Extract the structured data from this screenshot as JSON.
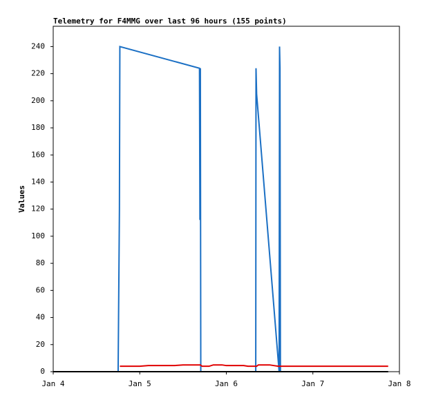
{
  "chart_data": {
    "type": "line",
    "title": "Telemetry for F4MMG over last 96 hours (155 points)",
    "y_label": "Values",
    "xlim": [
      0,
      4
    ],
    "xticks": [
      {
        "value": 0,
        "label": "Jan 4"
      },
      {
        "value": 1,
        "label": "Jan 5"
      },
      {
        "value": 2,
        "label": "Jan 6"
      },
      {
        "value": 3,
        "label": "Jan 7"
      },
      {
        "value": 4,
        "label": "Jan 8"
      }
    ],
    "ylim": [
      0,
      255
    ],
    "yticks": [
      0,
      20,
      40,
      60,
      80,
      100,
      120,
      140,
      160,
      180,
      200,
      220,
      240
    ],
    "grid": false,
    "series": [
      {
        "color": "#1a6fc4",
        "x": [
          0.75,
          0.755,
          0.76,
          0.765,
          0.77,
          1.69,
          1.695,
          1.7,
          1.705,
          2.34,
          2.343,
          2.35,
          2.61,
          2.615,
          2.62,
          2.625
        ],
        "values": [
          0,
          40,
          80,
          120,
          240,
          224,
          112,
          224,
          0,
          0,
          224,
          205,
          0,
          240,
          224,
          0
        ]
      },
      {
        "color": "#e00000",
        "x": [
          0.77,
          1.0,
          1.1,
          1.4,
          1.5,
          1.7,
          1.72,
          1.8,
          1.85,
          1.95,
          2.0,
          2.2,
          2.25,
          2.35,
          2.37,
          2.5,
          2.55,
          2.6,
          3.0,
          3.87
        ],
        "values": [
          4,
          4,
          4.5,
          4.5,
          5,
          5,
          4,
          4,
          5,
          5,
          4.5,
          4.5,
          4,
          4,
          5,
          5,
          4.5,
          4,
          4,
          4
        ]
      },
      {
        "color": "#000000",
        "x": [
          0,
          3.87
        ],
        "values": [
          0,
          0
        ]
      }
    ]
  }
}
